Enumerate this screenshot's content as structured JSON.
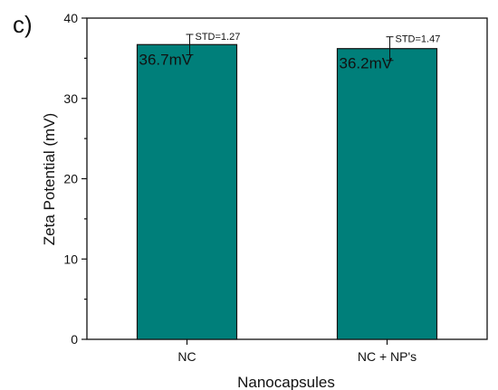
{
  "panel_label": "c)",
  "chart_data": {
    "type": "bar",
    "categories": [
      "NC",
      "NC + NP's"
    ],
    "values": [
      36.7,
      36.2
    ],
    "error": [
      1.27,
      1.47
    ],
    "value_labels": [
      "36.7mV",
      "36.2mV"
    ],
    "std_labels": [
      "STD=1.27",
      "STD=1.47"
    ],
    "xlabel": "Nanocapsules",
    "ylabel": "Zeta Potential (mV)",
    "ylim": [
      0,
      40
    ],
    "yticks": [
      0,
      10,
      20,
      30,
      40
    ],
    "grid": false,
    "bar_color": "#007f7a"
  }
}
